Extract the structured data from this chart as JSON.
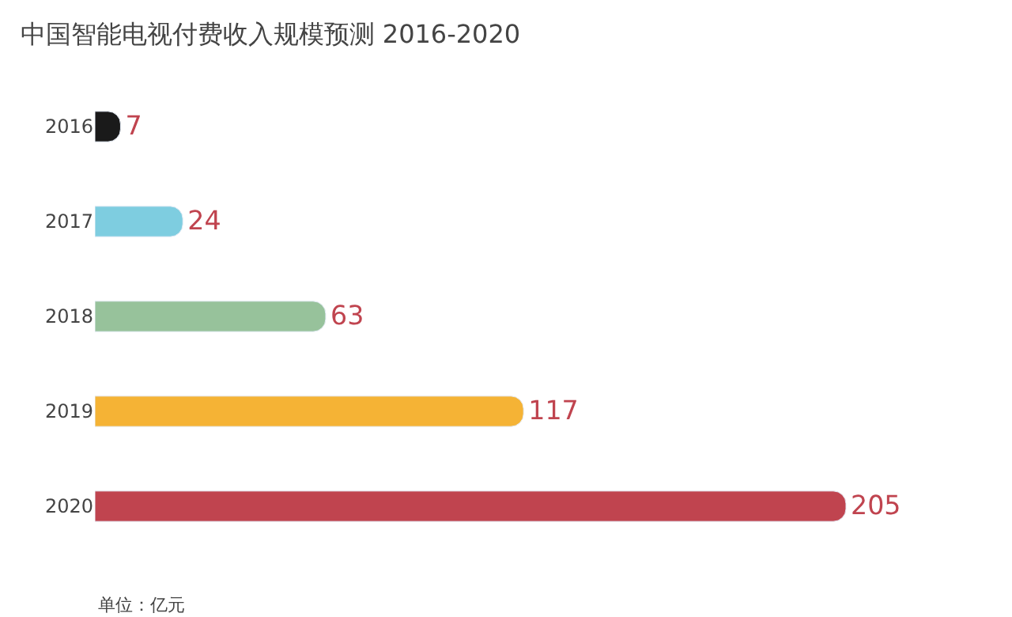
{
  "chart_data": {
    "type": "bar",
    "orientation": "horizontal",
    "title": "中国智能电视付费收入规模预测 2016-2020",
    "categories": [
      "2016",
      "2017",
      "2018",
      "2019",
      "2020"
    ],
    "values": [
      7,
      24,
      63,
      117,
      205
    ],
    "colors": [
      "#1a1a1a",
      "#7ecde0",
      "#97c29b",
      "#f5b335",
      "#c0444f"
    ],
    "data_labels": true,
    "tick_labels": "y",
    "annotations": [
      "单位：亿元"
    ]
  }
}
